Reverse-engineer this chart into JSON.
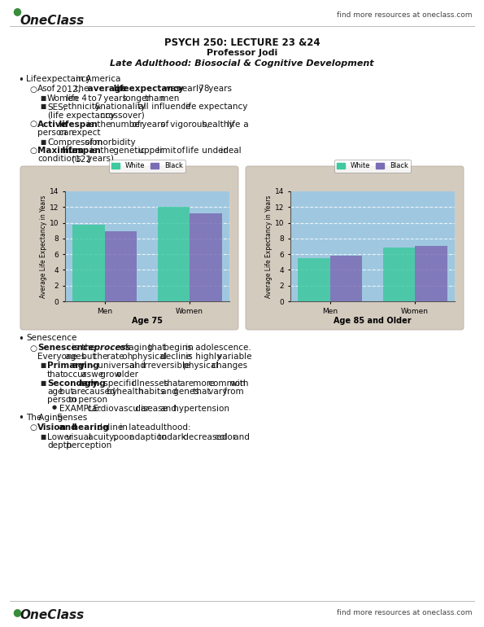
{
  "title_line1": "PSYCH 250: LECTURE 23 &24",
  "title_line2": "Professor Jodi",
  "title_line3": "Late Adulthood: Biosocial & Cognitive Development",
  "find_more_text": "find more resources at oneclass.com",
  "logo_color": "#3a8c3a",
  "page_bg": "#ffffff",
  "text_color": "#111111",
  "chart_outer_bg": "#d4cbbf",
  "chart1": {
    "title": "Age 75",
    "categories": [
      "Men",
      "Women"
    ],
    "white_values": [
      9.7,
      12.0
    ],
    "black_values": [
      8.9,
      11.2
    ],
    "ylabel": "Average Life Expectancy in Years",
    "ylim": [
      0,
      14
    ],
    "yticks": [
      0,
      2,
      4,
      6,
      8,
      10,
      12,
      14
    ],
    "white_color": "#3ec9a0",
    "black_color": "#7b6db5",
    "bg_color": "#9fc8e0",
    "legend_white": "White",
    "legend_black": "Black"
  },
  "chart2": {
    "title": "Age 85 and Older",
    "categories": [
      "Men",
      "Women"
    ],
    "white_values": [
      5.5,
      6.8
    ],
    "black_values": [
      5.8,
      7.1
    ],
    "ylabel": "Average Life Expectancy in Years",
    "ylim": [
      0,
      14
    ],
    "yticks": [
      0,
      2,
      4,
      6,
      8,
      10,
      12,
      14
    ],
    "white_color": "#3ec9a0",
    "black_color": "#7b6db5",
    "bg_color": "#9fc8e0",
    "legend_white": "White",
    "legend_black": "Black"
  },
  "section1_bullets": [
    {
      "level": 0,
      "marker": "bullet",
      "segments": [
        {
          "text": "Life expectancy in America",
          "bold": false
        }
      ]
    },
    {
      "level": 1,
      "marker": "circle",
      "segments": [
        {
          "text": "As of 2012, the ",
          "bold": false
        },
        {
          "text": "average life expectancy",
          "bold": true
        },
        {
          "text": " was nearly 78 years",
          "bold": false
        }
      ]
    },
    {
      "level": 2,
      "marker": "square",
      "segments": [
        {
          "text": "Women life 4 to 7  years longer than men",
          "bold": false
        }
      ]
    },
    {
      "level": 2,
      "marker": "square",
      "segments": [
        {
          "text": "SES, ethnicity & nationality all influence life expectancy (life expectancy crossover)",
          "bold": false
        }
      ]
    },
    {
      "level": 1,
      "marker": "circle",
      "segments": [
        {
          "text": "Active lifespan",
          "bold": true
        },
        {
          "text": " is the number of years of vigorous, healthy life a person can expect",
          "bold": false
        }
      ]
    },
    {
      "level": 2,
      "marker": "square",
      "segments": [
        {
          "text": "Compression of morbidity",
          "bold": false
        }
      ]
    },
    {
      "level": 1,
      "marker": "circle",
      "segments": [
        {
          "text": "Maximum lifespan",
          "bold": true
        },
        {
          "text": " is the genetic upper limit of life under ideal conditions (122 years)",
          "bold": false
        }
      ]
    }
  ],
  "section2_bullets": [
    {
      "level": 0,
      "marker": "bullet",
      "segments": [
        {
          "text": "Senescence",
          "bold": false
        }
      ]
    },
    {
      "level": 1,
      "marker": "circle",
      "segments": [
        {
          "text": "Senescence",
          "bold": true
        },
        {
          "text": " is the ",
          "bold": false
        },
        {
          "text": "process",
          "bold": true,
          "italic": true
        },
        {
          "text": " of aging that begins in adolescence. Everyone ages but the rate oh physical decline is highly variable",
          "bold": false
        }
      ]
    },
    {
      "level": 2,
      "marker": "square",
      "segments": [
        {
          "text": "Primary aging",
          "bold": true
        },
        {
          "text": " - universal and irreversible physical changes that occur as we grow older",
          "bold": false
        }
      ]
    },
    {
      "level": 2,
      "marker": "square",
      "segments": [
        {
          "text": "Secondary aging",
          "bold": true
        },
        {
          "text": " - specific illnesses that are more common with age but are caused by health habits and genes that vary from person to person",
          "bold": false
        }
      ]
    },
    {
      "level": 3,
      "marker": "bullet_sm",
      "segments": [
        {
          "text": "EXAMPLE: cardiovascular disease and hypertension",
          "bold": false
        }
      ]
    },
    {
      "level": 0,
      "marker": "bullet",
      "segments": [
        {
          "text": "The Aging Senses",
          "bold": false
        }
      ]
    },
    {
      "level": 1,
      "marker": "circle",
      "segments": [
        {
          "text": "Vision and hearing",
          "bold": true
        },
        {
          "text": " deline in late adulthood:",
          "bold": false
        }
      ]
    },
    {
      "level": 2,
      "marker": "square",
      "segments": [
        {
          "text": "Lower visual acuity, poor adaption to dark decreased color and depth perception",
          "bold": false
        }
      ]
    }
  ]
}
